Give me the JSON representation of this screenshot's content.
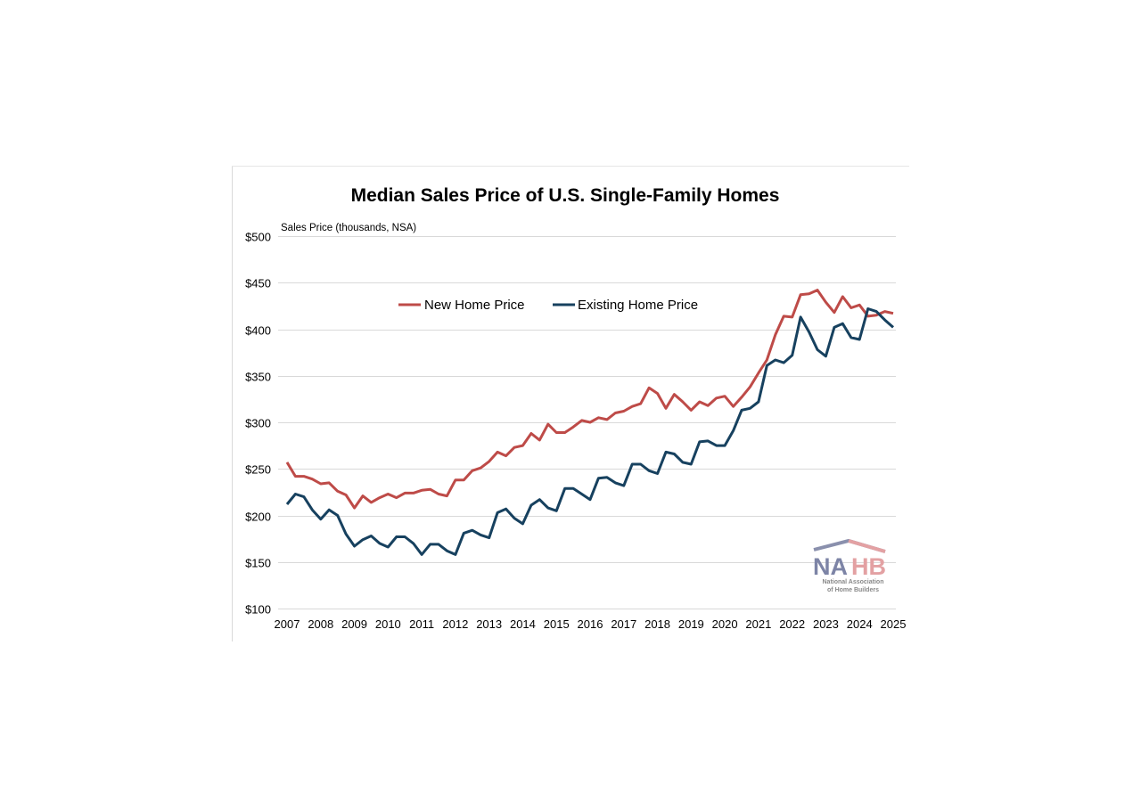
{
  "chart_data": {
    "type": "line",
    "title": "Median Sales Price of U.S. Single-Family Homes",
    "ylabel": "Sales Price (thousands, NSA)",
    "xlabel": "",
    "frequency": "quarterly",
    "x_start": "2007 Q1",
    "x_ticks": [
      "2007",
      "2008",
      "2009",
      "2010",
      "2011",
      "2012",
      "2013",
      "2014",
      "2015",
      "2016",
      "2017",
      "2018",
      "2019",
      "2020",
      "2021",
      "2022",
      "2023",
      "2024",
      "2025"
    ],
    "y_ticks": [
      "$100",
      "$150",
      "$200",
      "$250",
      "$300",
      "$350",
      "$400",
      "$450",
      "$500"
    ],
    "ylim": [
      100,
      500
    ],
    "grid": true,
    "legend_position": "top-center",
    "series": [
      {
        "name": "New Home Price",
        "color": "#BE4B48",
        "values": [
          257,
          242,
          242,
          239,
          234,
          235,
          226,
          222,
          208,
          221,
          214,
          219,
          223,
          219,
          224,
          224,
          227,
          228,
          223,
          221,
          238,
          238,
          248,
          251,
          258,
          268,
          264,
          273,
          275,
          288,
          281,
          298,
          289,
          289,
          295,
          302,
          300,
          305,
          303,
          310,
          312,
          317,
          320,
          337,
          331,
          315,
          330,
          322,
          313,
          322,
          318,
          326,
          328,
          317,
          327,
          338,
          353,
          367,
          394,
          414,
          413,
          437,
          438,
          442,
          429,
          418,
          435,
          423,
          426,
          414,
          415,
          419,
          417
        ]
      },
      {
        "name": "Existing Home Price",
        "color": "#17415F",
        "values": [
          212,
          223,
          220,
          206,
          196,
          206,
          200,
          180,
          167,
          174,
          178,
          170,
          166,
          177,
          177,
          170,
          158,
          169,
          169,
          162,
          158,
          181,
          184,
          179,
          176,
          203,
          207,
          197,
          191,
          211,
          217,
          208,
          205,
          229,
          229,
          223,
          217,
          240,
          241,
          235,
          232,
          255,
          255,
          248,
          245,
          268,
          266,
          257,
          255,
          279,
          280,
          275,
          275,
          291,
          313,
          315,
          322,
          361,
          367,
          364,
          372,
          413,
          397,
          378,
          371,
          402,
          406,
          391,
          389,
          422,
          419,
          410,
          402
        ]
      }
    ]
  },
  "logo": {
    "text": "NAHB",
    "subtitle_line1": "National Association",
    "subtitle_line2": "of Home Builders"
  }
}
